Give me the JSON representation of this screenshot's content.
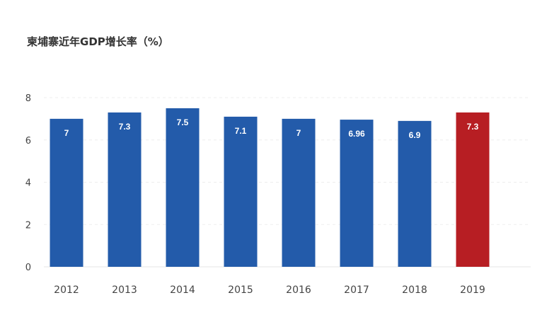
{
  "chart_data": {
    "type": "bar",
    "title": "柬埔寨近年GDP增长率（%）",
    "categories": [
      "2012",
      "2013",
      "2014",
      "2015",
      "2016",
      "2017",
      "2018",
      "2019"
    ],
    "values": [
      7,
      7.3,
      7.5,
      7.1,
      7,
      6.96,
      6.9,
      7.3
    ],
    "data_labels": [
      "7",
      "7.3",
      "7.5",
      "7.1",
      "7",
      "6.96",
      "6.9",
      "7.3"
    ],
    "y_ticks": [
      "0",
      "2",
      "4",
      "6",
      "8"
    ],
    "ylim": [
      0,
      8
    ],
    "xlabel": "",
    "ylabel": "",
    "grid": true,
    "legend": "none",
    "colors": {
      "default_bar": "#235BAA",
      "highlight_bar": "#B71E23",
      "highlight_category": "2019"
    }
  }
}
